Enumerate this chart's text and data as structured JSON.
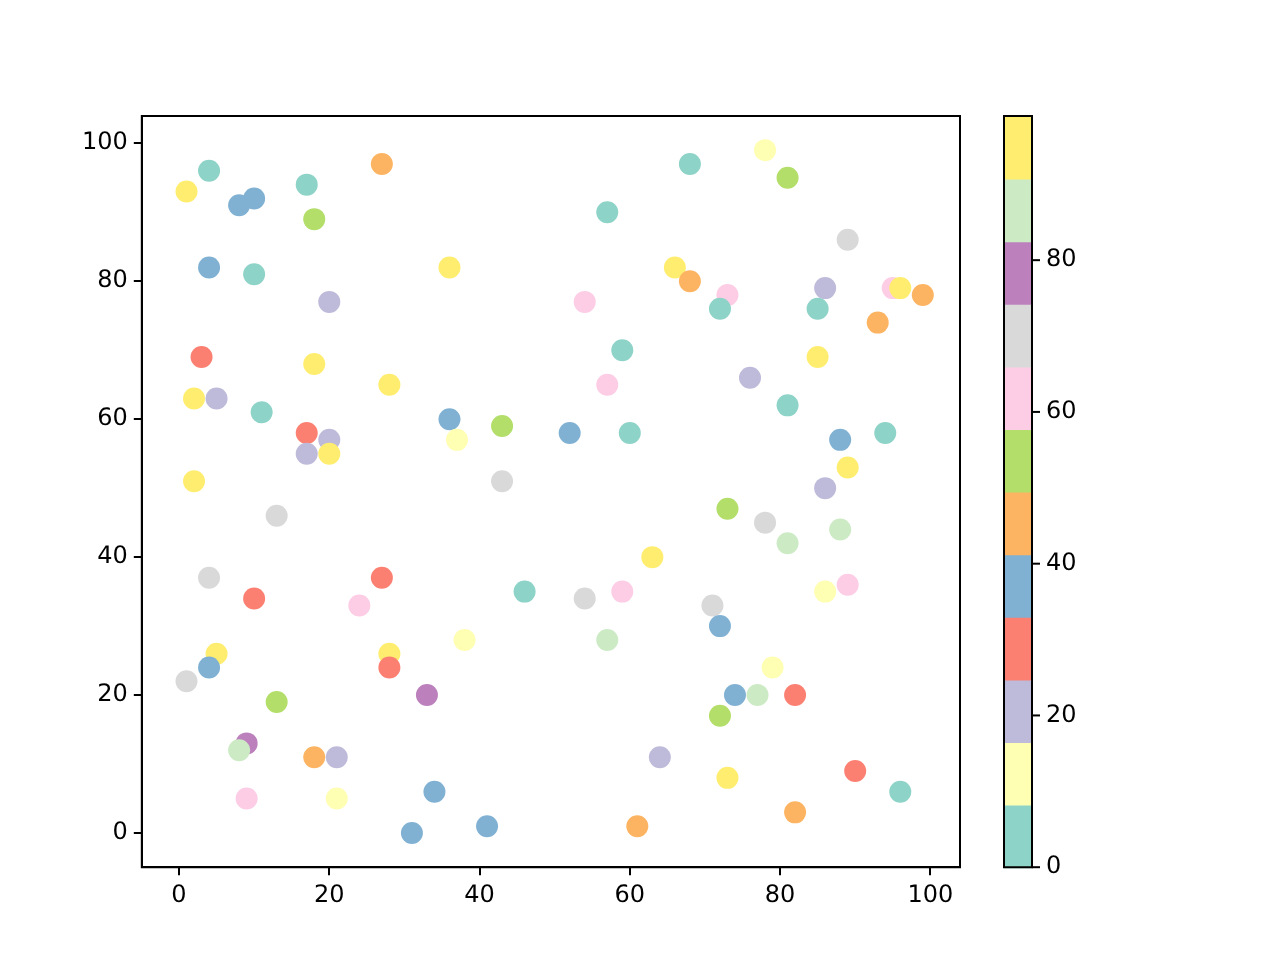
{
  "chart_data": {
    "type": "scatter",
    "x": [
      1,
      4,
      8,
      10,
      17,
      27,
      18,
      4,
      10,
      36,
      20,
      3,
      18,
      28,
      2,
      5,
      11,
      17,
      20,
      17,
      20,
      36,
      37,
      43,
      52,
      2,
      43,
      68,
      78,
      81,
      57,
      89,
      66,
      68,
      54,
      73,
      72,
      86,
      85,
      95,
      96,
      99,
      93,
      59,
      85,
      57,
      76,
      81,
      60,
      88,
      94,
      89,
      86,
      13,
      4,
      10,
      27,
      24,
      46,
      5,
      4,
      1,
      28,
      28,
      38,
      33,
      13,
      9,
      8,
      18,
      21,
      9,
      21,
      34,
      31,
      41,
      73,
      78,
      81,
      88,
      63,
      54,
      59,
      71,
      72,
      86,
      89,
      57,
      79,
      74,
      77,
      82,
      72,
      64,
      73,
      90,
      96,
      61,
      82
    ],
    "values": [
      93,
      96,
      91,
      92,
      94,
      97,
      89,
      82,
      81,
      82,
      77,
      69,
      68,
      65,
      63,
      63,
      61,
      58,
      57,
      55,
      55,
      60,
      57,
      59,
      58,
      51,
      51,
      97,
      99,
      95,
      90,
      86,
      82,
      80,
      77,
      78,
      76,
      79,
      76,
      79,
      79,
      78,
      74,
      70,
      69,
      65,
      66,
      62,
      58,
      57,
      58,
      53,
      50,
      46,
      37,
      34,
      37,
      33,
      35,
      26,
      24,
      22,
      26,
      24,
      28,
      20,
      19,
      13,
      12,
      11,
      11,
      5,
      5,
      6,
      0,
      1,
      47,
      45,
      42,
      44,
      40,
      34,
      35,
      33,
      30,
      35,
      36,
      28,
      24,
      20,
      20,
      20,
      17,
      11,
      8,
      9,
      6,
      1,
      3
    ],
    "cvalues": [
      95,
      4,
      37,
      37,
      4,
      45,
      54,
      37,
      4,
      95,
      21,
      29,
      95,
      95,
      95,
      21,
      4,
      29,
      21,
      21,
      95,
      37,
      12,
      54,
      37,
      95,
      70,
      4,
      12,
      54,
      4,
      70,
      95,
      45,
      62,
      62,
      4,
      21,
      4,
      62,
      95,
      45,
      45,
      4,
      95,
      62,
      21,
      4,
      4,
      37,
      4,
      95,
      21,
      70,
      70,
      29,
      29,
      62,
      4,
      95,
      37,
      70,
      95,
      29,
      12,
      78,
      54,
      78,
      87,
      45,
      21,
      62,
      12,
      37,
      37,
      37,
      54,
      70,
      87,
      87,
      95,
      70,
      62,
      70,
      37,
      12,
      62,
      87,
      12,
      37,
      87,
      29,
      54,
      21,
      95,
      29,
      4,
      45,
      45
    ],
    "clim": [
      0,
      99
    ],
    "cticks": [
      0,
      20,
      40,
      60,
      80
    ],
    "xlim": [
      -4.95,
      103.95
    ],
    "ylim": [
      -4.95,
      103.95
    ],
    "xticks": [
      0,
      20,
      40,
      60,
      80,
      100
    ],
    "yticks": [
      0,
      20,
      40,
      60,
      80,
      100
    ],
    "grid": false,
    "legend": false,
    "marker": "circle"
  }
}
